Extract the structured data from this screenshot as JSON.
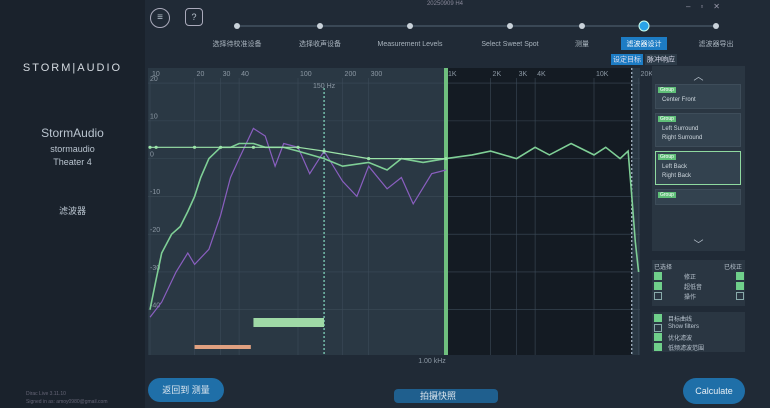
{
  "window": {
    "title": "20250909 H4"
  },
  "sidebar": {
    "brand_left": "STORM",
    "brand_right": "AUDIO",
    "device": "StormAudio",
    "model": "stormaudio",
    "location": "Theater 4",
    "section": "滤波器",
    "version": "Dirac Live 3.11.10",
    "account": "Signed in as: amoy0980@gmail.com",
    "back": "返回到 测量"
  },
  "steps": {
    "labels": [
      "选择待校准设备",
      "选择收声设备",
      "Measurement Levels",
      "Select Sweet Spot",
      "测量",
      "滤波器设计",
      "滤波器导出"
    ],
    "active": 5,
    "subtabs": [
      "设定目标",
      "脉冲响应"
    ]
  },
  "graph": {
    "xlim": [
      10,
      20000
    ],
    "ylim": [
      -52,
      24
    ],
    "xticks": [
      10,
      20,
      30,
      40,
      100,
      200,
      300,
      {
        "value": 1000,
        "label": "1K"
      },
      {
        "value": 2000,
        "label": "2K"
      },
      {
        "value": 3000,
        "label": "3K"
      },
      {
        "value": 4000,
        "label": "4K"
      },
      {
        "value": 10000,
        "label": "10K"
      },
      {
        "value": 20000,
        "label": "20K"
      }
    ],
    "yticks": [
      20,
      10,
      0,
      -10,
      -20,
      -30,
      -40
    ],
    "low_marker": {
      "value": 150,
      "label": "150 Hz"
    },
    "mid_marker": {
      "value": 1000,
      "label": "1.00 kHz"
    },
    "high_marker": 18000,
    "green_range": [
      50,
      150
    ],
    "orange_range": [
      20,
      48
    ],
    "series": [
      {
        "name": "measured",
        "color": "#8a5fc0",
        "x": [
          10,
          12,
          15,
          18,
          20,
          25,
          30,
          35,
          40,
          50,
          60,
          70,
          80,
          100,
          120,
          150,
          200,
          250,
          300,
          400,
          500,
          600,
          800,
          1000
        ],
        "values": [
          -42,
          -38,
          -30,
          -25,
          -28,
          -24,
          -15,
          -5,
          0,
          8,
          6,
          -2,
          4,
          3,
          -4,
          2,
          -6,
          -10,
          -2,
          -8,
          -5,
          -12,
          -4,
          -3
        ]
      },
      {
        "name": "corrected",
        "color": "#7fcf96",
        "x": [
          10,
          11,
          12,
          14,
          16,
          18,
          20,
          22,
          25,
          30,
          35,
          40,
          50,
          60,
          80,
          100,
          150,
          200,
          300,
          400,
          500,
          700,
          1000,
          1500,
          2000,
          3000,
          4000,
          5000,
          7000,
          10000,
          12000,
          15000,
          17000,
          18000,
          19000,
          20000
        ],
        "values": [
          -40,
          -32,
          -25,
          -20,
          -18,
          -14,
          -10,
          -5,
          0,
          3,
          3,
          4,
          4,
          3,
          3,
          2,
          0,
          -2,
          -1,
          -3,
          0,
          -1,
          0,
          1,
          2,
          0,
          3,
          1,
          4,
          1,
          3,
          0,
          2,
          -10,
          -22,
          -30
        ]
      },
      {
        "name": "target",
        "color": "#9be3a8",
        "x": [
          10,
          11,
          20,
          30,
          50,
          100,
          150,
          300,
          1000
        ],
        "values": [
          3,
          3,
          3,
          3,
          3,
          3,
          2,
          0,
          0
        ]
      }
    ]
  },
  "groups": [
    {
      "name": "Group",
      "channels": [
        "Center Front"
      ]
    },
    {
      "name": "Group",
      "channels": [
        "Left Surround",
        "Right Surround"
      ]
    },
    {
      "name": "Group",
      "channels": [
        "Left Back",
        "Right Back"
      ]
    },
    {
      "name": "Group",
      "channels": []
    }
  ],
  "options": {
    "header_left": "已选择",
    "header_right": "已校正",
    "rows": [
      {
        "label": "修正",
        "left": true,
        "right": true
      },
      {
        "label": "超低音",
        "left": true,
        "right": true
      },
      {
        "label": "操作",
        "left": false,
        "right": false
      }
    ]
  },
  "display": [
    {
      "label": "目标曲线",
      "checked": true
    },
    {
      "label": "Show filters",
      "checked": false
    },
    {
      "label": "优化滤波",
      "checked": true
    },
    {
      "label": "低频滤波范围",
      "checked": true
    }
  ],
  "snapshot": "拍摄快照",
  "calculate": "Calculate"
}
